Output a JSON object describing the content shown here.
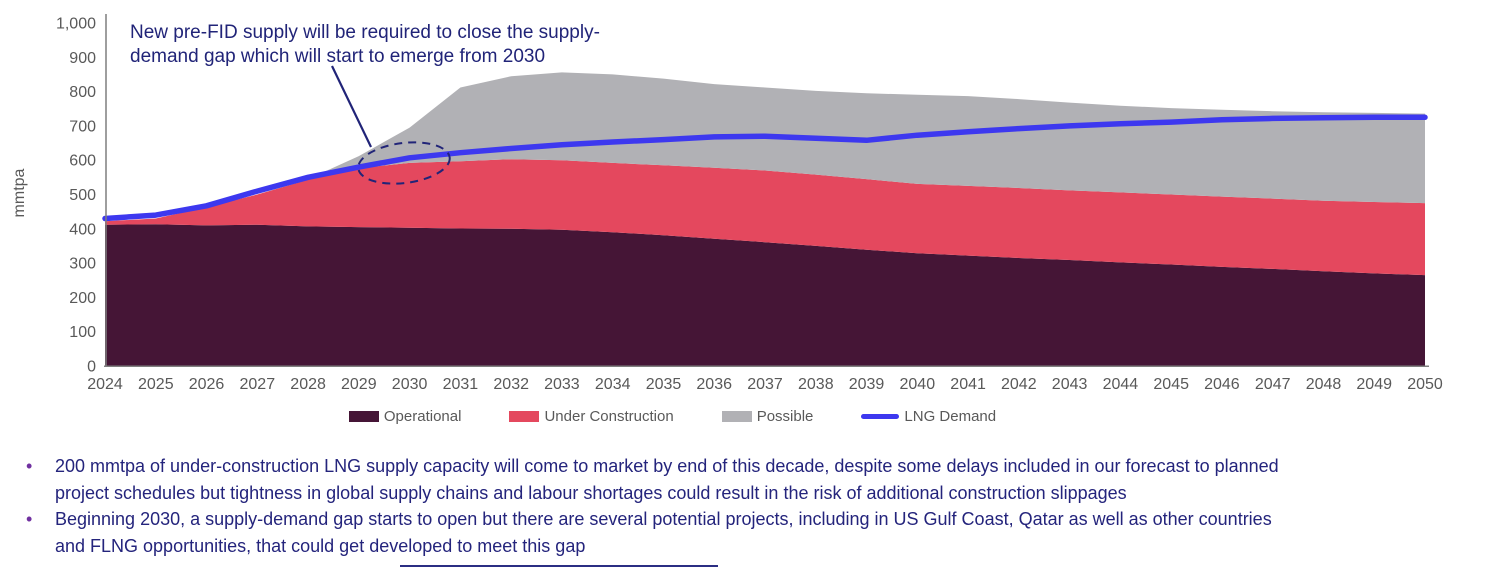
{
  "colors": {
    "operational": "#451536",
    "under_construction": "#e4485e",
    "possible": "#b1b1b5",
    "lng_demand": "#3d38ef",
    "annotation_text": "#212478",
    "bullet_text": "#24247c",
    "bullet_marker": "#7030a0",
    "axis_text": "#595959",
    "axis_line": "#7f7f7f"
  },
  "annotation": {
    "line1": "New pre-FID supply will be required to close the supply-",
    "line2": "demand gap which will start to emerge from 2030"
  },
  "bullets": [
    {
      "line1": "200 mmtpa of under-construction LNG supply capacity will come to market by end of this decade, despite some delays included in our forecast to planned",
      "line2": "project schedules but tightness in global supply chains and labour shortages could result in the risk of additional construction slippages"
    },
    {
      "line1": "Beginning 2030, a supply-demand gap starts to open but there are several potential projects, including in US Gulf Coast, Qatar as well as other countries",
      "line2": "and FLNG opportunities, that could get developed to meet this gap"
    }
  ],
  "chart_data": {
    "type": "area",
    "stacked": true,
    "title": "",
    "xlabel": "",
    "ylabel": "mmtpa",
    "ylim": [
      0,
      1000
    ],
    "grid": false,
    "legend_position": "bottom",
    "y_ticks": [
      "0",
      "100",
      "200",
      "300",
      "400",
      "500",
      "600",
      "700",
      "800",
      "900",
      "1,000"
    ],
    "x": [
      2024,
      2025,
      2026,
      2027,
      2028,
      2029,
      2030,
      2031,
      2032,
      2033,
      2034,
      2035,
      2036,
      2037,
      2038,
      2039,
      2040,
      2041,
      2042,
      2043,
      2044,
      2045,
      2046,
      2047,
      2048,
      2049,
      2050
    ],
    "series": [
      {
        "name": "Operational",
        "color": "#451536",
        "values": [
          412,
          413,
          410,
          412,
          407,
          405,
          403,
          401,
          400,
          397,
          390,
          381,
          371,
          361,
          350,
          339,
          329,
          322,
          315,
          309,
          302,
          296,
          289,
          283,
          276,
          270,
          265
        ]
      },
      {
        "name": "Under Construction",
        "color": "#e4485e",
        "values": [
          10,
          17,
          53,
          88,
          136,
          172,
          189,
          196,
          203,
          203,
          202,
          204,
          207,
          209,
          208,
          206,
          202,
          203,
          204,
          203,
          204,
          204,
          205,
          205,
          206,
          208,
          210
        ]
      },
      {
        "name": "Possible",
        "color": "#b1b1b5",
        "values": [
          0,
          0,
          0,
          0,
          2,
          35,
          103,
          215,
          242,
          256,
          258,
          253,
          244,
          242,
          244,
          250,
          260,
          262,
          259,
          256,
          253,
          252,
          253,
          255,
          258,
          260,
          261
        ]
      }
    ],
    "line_series": {
      "name": "LNG Demand",
      "color": "#3d38ef",
      "values": [
        430,
        440,
        467,
        510,
        550,
        580,
        607,
        622,
        634,
        645,
        653,
        660,
        668,
        670,
        664,
        658,
        673,
        683,
        692,
        700,
        706,
        711,
        718,
        722,
        724,
        725,
        725
      ]
    }
  }
}
